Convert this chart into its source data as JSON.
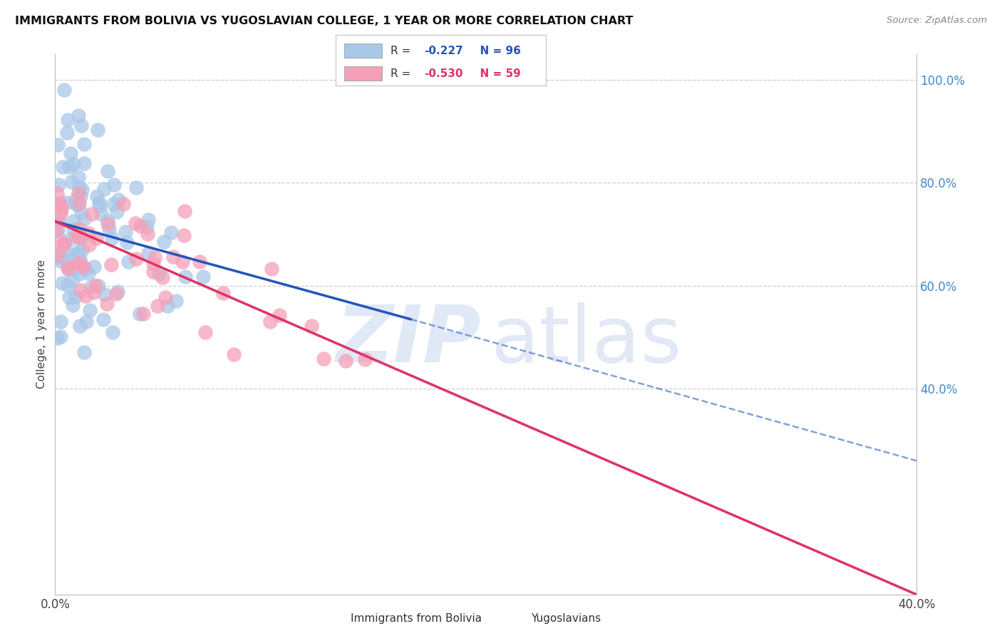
{
  "title": "IMMIGRANTS FROM BOLIVIA VS YUGOSLAVIAN COLLEGE, 1 YEAR OR MORE CORRELATION CHART",
  "source": "Source: ZipAtlas.com",
  "ylabel": "College, 1 year or more",
  "xlabel_bolivia": "Immigrants from Bolivia",
  "xlabel_yugoslavians": "Yugoslavians",
  "xmin": 0.0,
  "xmax": 0.4,
  "ymin": 0.0,
  "ymax": 1.05,
  "yticks": [
    0.4,
    0.6,
    0.8,
    1.0
  ],
  "ytick_labels": [
    "40.0%",
    "60.0%",
    "80.0%",
    "100.0%"
  ],
  "xtick_labels": [
    "0.0%",
    "40.0%"
  ],
  "R_bolivia": -0.227,
  "N_bolivia": 96,
  "R_yugoslavian": -0.53,
  "N_yugoslavian": 59,
  "color_bolivia": "#a8c8e8",
  "color_yugoslavian": "#f5a0b8",
  "line_color_bolivia": "#2255bb",
  "line_color_yugoslavian": "#dd3366",
  "background_color": "#ffffff",
  "grid_color": "#cccccc",
  "bolivia_line_x0": 0.0,
  "bolivia_line_y0": 0.725,
  "bolivia_line_x1": 0.165,
  "bolivia_line_y1": 0.535,
  "yugoslavian_line_x0": 0.0,
  "yugoslavian_line_y0": 0.725,
  "yugoslavian_line_x1": 0.4,
  "yugoslavian_line_y1": 0.0,
  "dashed_line_x0": 0.165,
  "dashed_line_y0": 0.535,
  "dashed_line_x1": 0.4,
  "dashed_line_y1": 0.26
}
